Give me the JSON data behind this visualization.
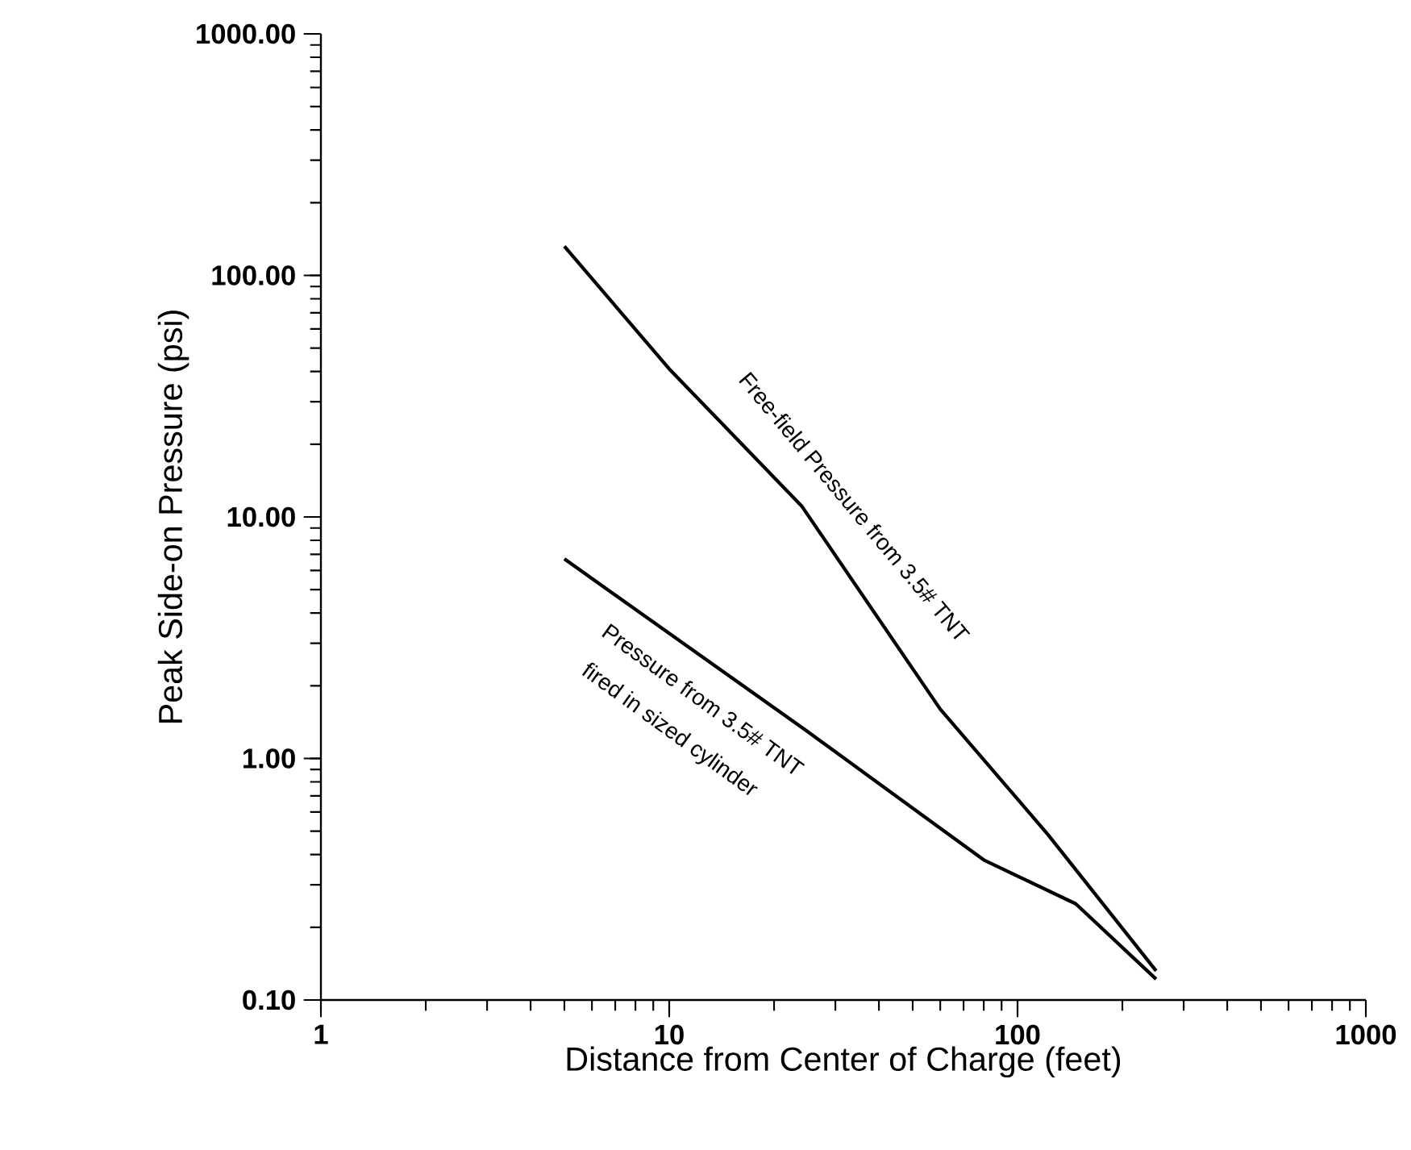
{
  "chart_data": {
    "type": "line",
    "xlabel": "Distance from Center of Charge (feet)",
    "ylabel": "Peak Side-on Pressure (psi)",
    "log": "xy",
    "xlim": [
      1,
      1000
    ],
    "xticks": [
      1,
      10,
      100,
      1000
    ],
    "ylim": [
      0.1,
      1000
    ],
    "yticks": [
      {
        "value": 0.1,
        "label": "0.10"
      },
      {
        "value": 1,
        "label": "1.00"
      },
      {
        "value": 10,
        "label": "10.00"
      },
      {
        "value": 100,
        "label": "100.00"
      },
      {
        "value": 1000,
        "label": "1000.00"
      }
    ],
    "series": [
      {
        "color": "#000000",
        "x": [
          5,
          10,
          24,
          60,
          122,
          250
        ],
        "values": [
          132,
          41,
          11.1,
          1.6,
          0.486,
          0.132
        ]
      },
      {
        "color": "#000000",
        "x": [
          5,
          24.8,
          80,
          147,
          250
        ],
        "values": [
          6.7,
          1.3,
          0.38,
          0.25,
          0.122
        ]
      }
    ],
    "annotations": [
      "Free-field Pressure from 3.5# TNT",
      "Pressure from 3.5# TNT",
      "fired in sized cylinder"
    ]
  }
}
